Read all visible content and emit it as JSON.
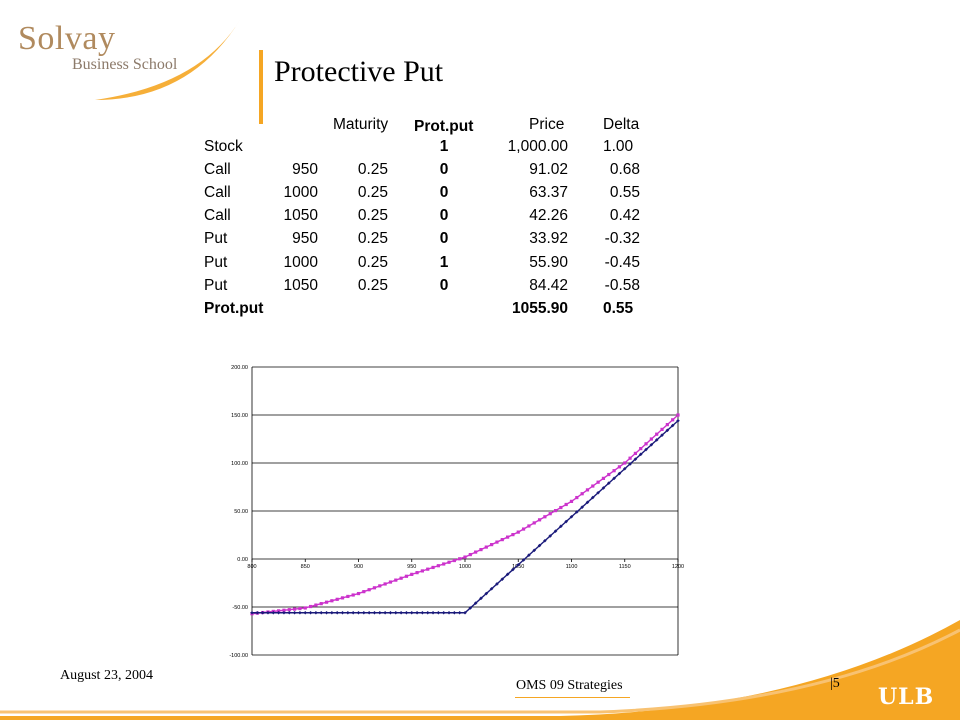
{
  "logo": {
    "line1": "Solvay",
    "line2": "Business School"
  },
  "title": "Protective Put",
  "table": {
    "headers": {
      "maturity": "Maturity",
      "position": "Prot.put",
      "price": "Price",
      "delta": "Delta"
    },
    "rows": [
      {
        "name": "Stock",
        "strike": "",
        "maturity": "",
        "position": "1",
        "price": "1,000.00",
        "delta": "1.00"
      },
      {
        "name": "Call",
        "strike": "950",
        "maturity": "0.25",
        "position": "0",
        "price": "91.02",
        "delta": "0.68"
      },
      {
        "name": "Call",
        "strike": "1000",
        "maturity": "0.25",
        "position": "0",
        "price": "63.37",
        "delta": "0.55"
      },
      {
        "name": "Call",
        "strike": "1050",
        "maturity": "0.25",
        "position": "0",
        "price": "42.26",
        "delta": "0.42"
      },
      {
        "name": "Put",
        "strike": "950",
        "maturity": "0.25",
        "position": "0",
        "price": "33.92",
        "delta": "-0.32"
      },
      {
        "name": "Put",
        "strike": "1000",
        "maturity": "0.25",
        "position": "1",
        "price": "55.90",
        "delta": "-0.45"
      },
      {
        "name": "Put",
        "strike": "1050",
        "maturity": "0.25",
        "position": "0",
        "price": "84.42",
        "delta": "-0.58"
      }
    ],
    "total": {
      "name": "Prot.put",
      "price": "1055.90",
      "delta": "0.55"
    }
  },
  "chart_data": {
    "type": "line",
    "title": "",
    "xlabel": "",
    "ylabel": "",
    "xlim": [
      800,
      1200
    ],
    "ylim": [
      -100,
      200
    ],
    "x_ticks": [
      "800",
      "850",
      "900",
      "950",
      "1000",
      "1050",
      "1100",
      "1150",
      "1200"
    ],
    "y_ticks": [
      "200.00",
      "150.00",
      "100.00",
      "50.00",
      "0.00",
      "-50.00",
      "-100.00"
    ],
    "grid": "horizontal",
    "series": [
      {
        "color": "#cc33cc",
        "marker": "square",
        "description_curve": "value before maturity",
        "x": [
          800,
          850,
          900,
          950,
          1000,
          1050,
          1100,
          1150,
          1200
        ],
        "y": [
          -57,
          -51,
          -36,
          -16,
          2,
          28,
          60,
          100,
          150
        ]
      },
      {
        "color": "#1a1a7a",
        "marker": "diamond",
        "description_curve": "payoff at maturity",
        "x": [
          800,
          850,
          900,
          950,
          1000,
          1050,
          1100,
          1150,
          1200
        ],
        "y": [
          -56,
          -56,
          -56,
          -56,
          -56,
          -6,
          44,
          94,
          144
        ]
      }
    ]
  },
  "footer": {
    "date": "August 23, 2004",
    "course": "OMS 09 Strategies",
    "page": "|5",
    "ulb": "ULB"
  },
  "colors": {
    "accent": "#f5a623",
    "logo_text": "#b08a5e"
  }
}
